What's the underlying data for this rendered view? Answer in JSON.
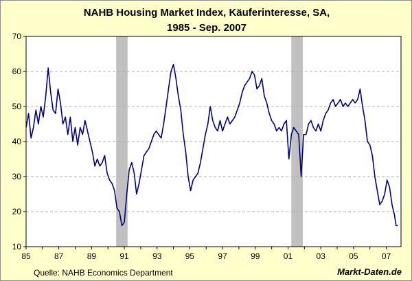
{
  "chart_data": {
    "type": "line",
    "title_line1": "NAHB Housing Market Index, Käuferinteresse, SA,",
    "title_line2": "1985 - Sep. 2007",
    "xlabel": "",
    "ylabel": "",
    "xlim": [
      1985.0,
      2007.9
    ],
    "ylim": [
      10,
      70
    ],
    "y_ticks": [
      10,
      20,
      30,
      40,
      50,
      60,
      70
    ],
    "x_ticks": [
      {
        "year": 1985,
        "label": "85"
      },
      {
        "year": 1987,
        "label": "87"
      },
      {
        "year": 1989,
        "label": "89"
      },
      {
        "year": 1991,
        "label": "91"
      },
      {
        "year": 1993,
        "label": "93"
      },
      {
        "year": 1995,
        "label": "95"
      },
      {
        "year": 1997,
        "label": "97"
      },
      {
        "year": 1999,
        "label": "99"
      },
      {
        "year": 2001,
        "label": "01"
      },
      {
        "year": 2003,
        "label": "03"
      },
      {
        "year": 2005,
        "label": "05"
      },
      {
        "year": 2007,
        "label": "07"
      }
    ],
    "grid": true,
    "recessions": [
      {
        "start": 1990.5,
        "end": 1991.2
      },
      {
        "start": 2001.2,
        "end": 2001.9
      }
    ],
    "series": [
      {
        "name": "NAHB Käuferinteresse",
        "color": "#000080",
        "points": [
          [
            1985.0,
            44
          ],
          [
            1985.15,
            48
          ],
          [
            1985.3,
            41
          ],
          [
            1985.45,
            44
          ],
          [
            1985.6,
            49
          ],
          [
            1985.75,
            45
          ],
          [
            1985.9,
            50
          ],
          [
            1986.05,
            47
          ],
          [
            1986.2,
            53
          ],
          [
            1986.35,
            61
          ],
          [
            1986.5,
            54
          ],
          [
            1986.65,
            49
          ],
          [
            1986.8,
            48
          ],
          [
            1986.95,
            55
          ],
          [
            1987.1,
            51
          ],
          [
            1987.25,
            45
          ],
          [
            1987.4,
            47
          ],
          [
            1987.55,
            42
          ],
          [
            1987.7,
            47
          ],
          [
            1987.85,
            40
          ],
          [
            1988.0,
            44
          ],
          [
            1988.15,
            39
          ],
          [
            1988.3,
            44
          ],
          [
            1988.45,
            42
          ],
          [
            1988.6,
            46
          ],
          [
            1988.75,
            43
          ],
          [
            1988.9,
            40
          ],
          [
            1989.05,
            37
          ],
          [
            1989.2,
            33
          ],
          [
            1989.35,
            35
          ],
          [
            1989.5,
            33
          ],
          [
            1989.65,
            34
          ],
          [
            1989.8,
            36
          ],
          [
            1989.95,
            31
          ],
          [
            1990.1,
            29
          ],
          [
            1990.25,
            28
          ],
          [
            1990.4,
            26
          ],
          [
            1990.55,
            21
          ],
          [
            1990.7,
            20
          ],
          [
            1990.85,
            16
          ],
          [
            1991.0,
            17
          ],
          [
            1991.15,
            25
          ],
          [
            1991.3,
            32
          ],
          [
            1991.45,
            34
          ],
          [
            1991.6,
            31
          ],
          [
            1991.75,
            25
          ],
          [
            1991.9,
            28
          ],
          [
            1992.05,
            32
          ],
          [
            1992.2,
            36
          ],
          [
            1992.35,
            37
          ],
          [
            1992.5,
            38
          ],
          [
            1992.65,
            40
          ],
          [
            1992.8,
            42
          ],
          [
            1992.95,
            43
          ],
          [
            1993.1,
            42
          ],
          [
            1993.25,
            41
          ],
          [
            1993.4,
            45
          ],
          [
            1993.55,
            50
          ],
          [
            1993.7,
            55
          ],
          [
            1993.85,
            60
          ],
          [
            1994.0,
            62
          ],
          [
            1994.15,
            58
          ],
          [
            1994.3,
            53
          ],
          [
            1994.45,
            49
          ],
          [
            1994.6,
            42
          ],
          [
            1994.75,
            37
          ],
          [
            1994.9,
            30
          ],
          [
            1995.05,
            26
          ],
          [
            1995.2,
            29
          ],
          [
            1995.35,
            30
          ],
          [
            1995.5,
            31
          ],
          [
            1995.65,
            34
          ],
          [
            1995.8,
            38
          ],
          [
            1995.95,
            42
          ],
          [
            1996.1,
            45
          ],
          [
            1996.25,
            50
          ],
          [
            1996.4,
            46
          ],
          [
            1996.55,
            44
          ],
          [
            1996.7,
            43
          ],
          [
            1996.85,
            46
          ],
          [
            1997.0,
            43
          ],
          [
            1997.15,
            45
          ],
          [
            1997.3,
            47
          ],
          [
            1997.45,
            45
          ],
          [
            1997.6,
            46
          ],
          [
            1997.75,
            47
          ],
          [
            1997.9,
            49
          ],
          [
            1998.05,
            51
          ],
          [
            1998.2,
            54
          ],
          [
            1998.35,
            56
          ],
          [
            1998.5,
            57
          ],
          [
            1998.65,
            58
          ],
          [
            1998.8,
            60
          ],
          [
            1998.95,
            59
          ],
          [
            1999.1,
            55
          ],
          [
            1999.25,
            56
          ],
          [
            1999.4,
            58
          ],
          [
            1999.55,
            53
          ],
          [
            1999.7,
            51
          ],
          [
            1999.85,
            48
          ],
          [
            2000.0,
            46
          ],
          [
            2000.15,
            45
          ],
          [
            2000.3,
            43
          ],
          [
            2000.45,
            44
          ],
          [
            2000.6,
            43
          ],
          [
            2000.75,
            45
          ],
          [
            2000.9,
            46
          ],
          [
            2001.05,
            35
          ],
          [
            2001.2,
            42
          ],
          [
            2001.35,
            44
          ],
          [
            2001.5,
            43
          ],
          [
            2001.65,
            42
          ],
          [
            2001.8,
            30
          ],
          [
            2001.95,
            42
          ],
          [
            2002.1,
            42
          ],
          [
            2002.25,
            45
          ],
          [
            2002.4,
            46
          ],
          [
            2002.55,
            44
          ],
          [
            2002.7,
            43
          ],
          [
            2002.85,
            45
          ],
          [
            2003.0,
            43
          ],
          [
            2003.15,
            46
          ],
          [
            2003.3,
            48
          ],
          [
            2003.45,
            49
          ],
          [
            2003.6,
            51
          ],
          [
            2003.75,
            52
          ],
          [
            2003.9,
            50
          ],
          [
            2004.05,
            51
          ],
          [
            2004.2,
            52
          ],
          [
            2004.35,
            50
          ],
          [
            2004.5,
            51
          ],
          [
            2004.65,
            50
          ],
          [
            2004.8,
            51
          ],
          [
            2004.95,
            52
          ],
          [
            2005.1,
            51
          ],
          [
            2005.25,
            52
          ],
          [
            2005.4,
            55
          ],
          [
            2005.55,
            50
          ],
          [
            2005.7,
            46
          ],
          [
            2005.85,
            40
          ],
          [
            2006.0,
            39
          ],
          [
            2006.15,
            36
          ],
          [
            2006.3,
            30
          ],
          [
            2006.45,
            26
          ],
          [
            2006.6,
            22
          ],
          [
            2006.75,
            23
          ],
          [
            2006.9,
            25
          ],
          [
            2007.05,
            29
          ],
          [
            2007.2,
            27
          ],
          [
            2007.35,
            22
          ],
          [
            2007.5,
            19
          ],
          [
            2007.6,
            16
          ],
          [
            2007.7,
            16
          ]
        ]
      }
    ]
  },
  "footer": {
    "source": "Quelle: NAHB Economics Department",
    "brand": "Markt-Daten.de"
  }
}
